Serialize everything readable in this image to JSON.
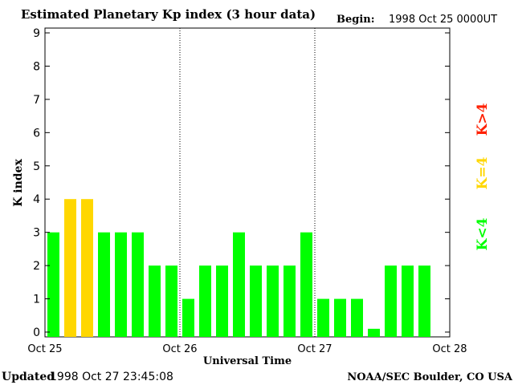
{
  "header": {
    "title": "Estimated Planetary Kp index (3 hour data)",
    "begin_label": "Begin:",
    "begin_value": "1998 Oct 25 0000UT"
  },
  "footer": {
    "updated_label": "Updated",
    "updated_value": "1998 Oct 27 23:45:08",
    "credit": "NOAA/SEC Boulder, CO USA"
  },
  "legend": {
    "gt4": "K>4",
    "eq4": "K=4",
    "lt4": "K<4"
  },
  "colors": {
    "lt4": "#00ff00",
    "eq4": "#ffd700",
    "gt4": "#ff2000"
  },
  "chart_data": {
    "type": "bar",
    "title": "Estimated Planetary Kp index (3 hour data)",
    "xlabel": "Universal Time",
    "ylabel": "K index",
    "ylim": [
      0,
      9
    ],
    "yticks": [
      "0",
      "1",
      "2",
      "3",
      "4",
      "5",
      "6",
      "7",
      "8",
      "9"
    ],
    "xticks": [
      "Oct 25",
      "Oct 26",
      "Oct 27",
      "Oct 28"
    ],
    "grid": "vertical dotted lines at day boundaries",
    "interval_hours": 3,
    "values": [
      3,
      4,
      4,
      3,
      3,
      3,
      2,
      2,
      1,
      2,
      2,
      3,
      2,
      2,
      2,
      3,
      1,
      1,
      1,
      0.1,
      2,
      2,
      2
    ]
  }
}
